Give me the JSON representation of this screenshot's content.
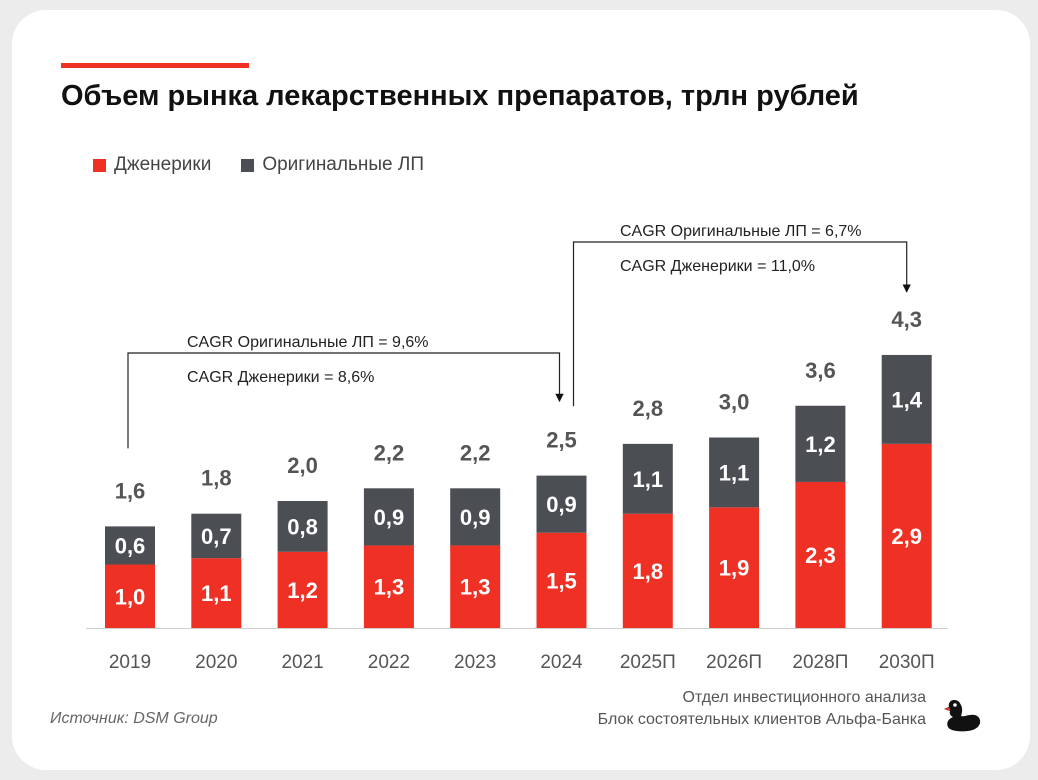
{
  "title": "Объем рынка лекарственных препаратов, трлн рублей",
  "legend": [
    {
      "label": "Дженерики",
      "color": "#ee3124"
    },
    {
      "label": "Оригинальные ЛП",
      "color": "#4b4f54"
    }
  ],
  "chart_data": {
    "type": "bar",
    "stacked": true,
    "categories": [
      "2019",
      "2020",
      "2021",
      "2022",
      "2023",
      "2024",
      "2025П",
      "2026П",
      "2028П",
      "2030П"
    ],
    "series": [
      {
        "name": "Дженерики",
        "color": "#ee3124",
        "values": [
          1.0,
          1.1,
          1.2,
          1.3,
          1.3,
          1.5,
          1.8,
          1.9,
          2.3,
          2.9
        ],
        "labels": [
          "1,0",
          "1,1",
          "1,2",
          "1,3",
          "1,3",
          "1,5",
          "1,8",
          "1,9",
          "2,3",
          "2,9"
        ]
      },
      {
        "name": "Оригинальные ЛП",
        "color": "#4b4f54",
        "values": [
          0.6,
          0.7,
          0.8,
          0.9,
          0.9,
          0.9,
          1.1,
          1.1,
          1.2,
          1.4
        ],
        "labels": [
          "0,6",
          "0,7",
          "0,8",
          "0,9",
          "0,9",
          "0,9",
          "1,1",
          "1,1",
          "1,2",
          "1,4"
        ]
      }
    ],
    "totals": [
      1.6,
      1.8,
      2.0,
      2.2,
      2.2,
      2.5,
      2.8,
      3.0,
      3.6,
      4.3
    ],
    "total_labels": [
      "1,6",
      "1,8",
      "2,0",
      "2,2",
      "2,2",
      "2,5",
      "2,8",
      "3,0",
      "3,6",
      "4,3"
    ],
    "annotations": [
      {
        "from": "2019",
        "to": "2024",
        "lines": [
          "CAGR Оригинальные ЛП = 9,6%",
          "CAGR Дженерики = 8,6%"
        ]
      },
      {
        "from": "2024",
        "to": "2030П",
        "lines": [
          "CAGR Оригинальные ЛП = 6,7%",
          "CAGR Дженерики = 11,0%"
        ]
      }
    ],
    "legend_position": "top-left",
    "grid": false
  },
  "footer": {
    "source": "Источник: DSM Group",
    "credit_line1": "Отдел инвестиционного анализа",
    "credit_line2": "Блок состоятельных клиентов Альфа-Банка"
  },
  "logo_icon": "duck-logo-icon"
}
